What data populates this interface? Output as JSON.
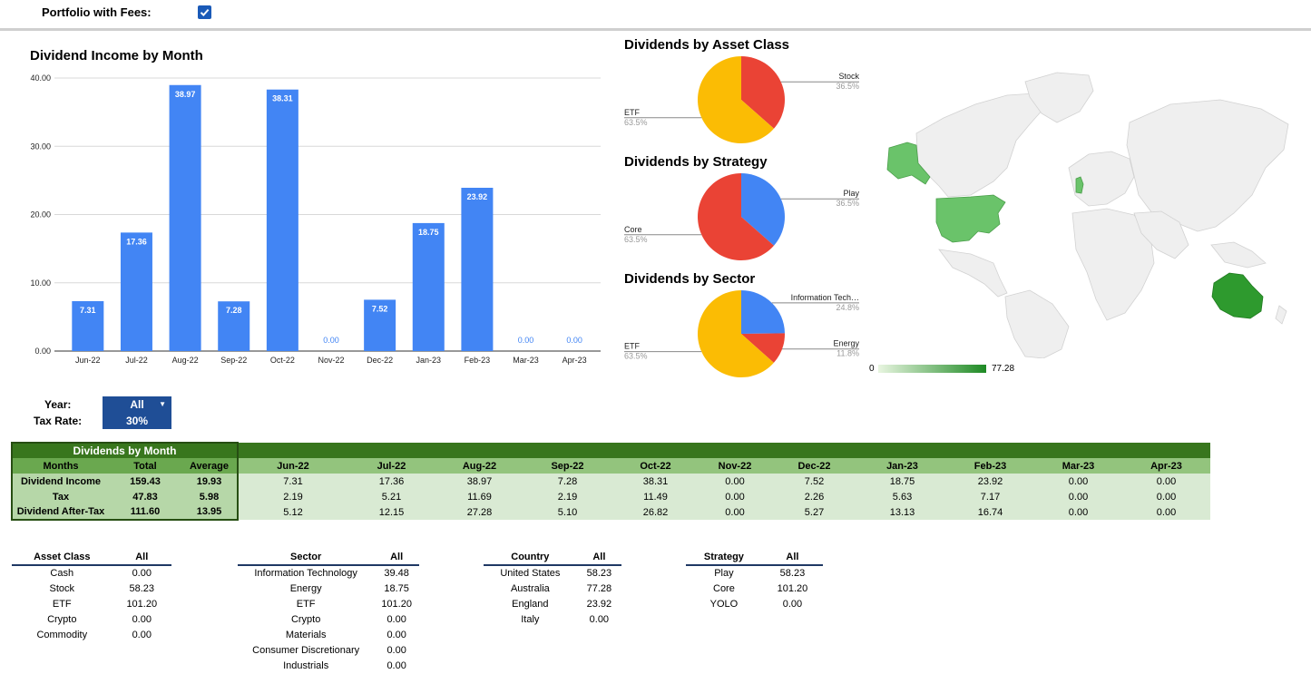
{
  "header": {
    "fees_label": "Portfolio with Fees:",
    "fees_checked": true
  },
  "controls": {
    "year_label": "Year:",
    "year_value": "All",
    "tax_label": "Tax Rate:",
    "tax_value": "30%"
  },
  "colors": {
    "bar": "#4285f4",
    "pie_blue": "#4285f4",
    "pie_red": "#ea4335",
    "pie_yellow": "#fbbc04",
    "map_high": "#1e8a24",
    "map_low": "#e8f5e0"
  },
  "chart_data": [
    {
      "type": "bar",
      "title": "Dividend Income by Month",
      "categories": [
        "Jun-22",
        "Jul-22",
        "Aug-22",
        "Sep-22",
        "Oct-22",
        "Nov-22",
        "Dec-22",
        "Jan-23",
        "Feb-23",
        "Mar-23",
        "Apr-23"
      ],
      "values": [
        7.31,
        17.36,
        38.97,
        7.28,
        38.31,
        0.0,
        7.52,
        18.75,
        23.92,
        0.0,
        0.0
      ],
      "value_labels": [
        "7.31",
        "17.36",
        "38.97",
        "7.28",
        "38.31",
        "0.00",
        "7.52",
        "18.75",
        "23.92",
        "0.00",
        "0.00"
      ],
      "yticks": [
        "0.00",
        "10.00",
        "20.00",
        "30.00",
        "40.00"
      ],
      "ylim": [
        0,
        40
      ],
      "grid": true
    },
    {
      "type": "pie",
      "title": "Dividends by Asset Class",
      "slices": [
        {
          "label": "Stock",
          "pct": "36.5%",
          "value": 36.5,
          "color": "#ea4335"
        },
        {
          "label": "ETF",
          "pct": "63.5%",
          "value": 63.5,
          "color": "#fbbc04"
        }
      ]
    },
    {
      "type": "pie",
      "title": "Dividends by Strategy",
      "slices": [
        {
          "label": "Play",
          "pct": "36.5%",
          "value": 36.5,
          "color": "#4285f4"
        },
        {
          "label": "Core",
          "pct": "63.5%",
          "value": 63.5,
          "color": "#ea4335"
        }
      ]
    },
    {
      "type": "pie",
      "title": "Dividends by Sector",
      "slices": [
        {
          "label": "Information Tech…",
          "pct": "24.8%",
          "value": 24.8,
          "color": "#4285f4"
        },
        {
          "label": "Energy",
          "pct": "11.8%",
          "value": 11.8,
          "color": "#ea4335"
        },
        {
          "label": "ETF",
          "pct": "63.5%",
          "value": 63.5,
          "color": "#fbbc04"
        }
      ]
    },
    {
      "type": "geo",
      "highlighted": [
        "United States",
        "Australia",
        "England"
      ],
      "legend_min": "0",
      "legend_max": "77.28"
    }
  ],
  "month_table": {
    "title": "Dividends by Month",
    "headers": [
      "Months",
      "Total",
      "Average"
    ],
    "months": [
      "Jun-22",
      "Jul-22",
      "Aug-22",
      "Sep-22",
      "Oct-22",
      "Nov-22",
      "Dec-22",
      "Jan-23",
      "Feb-23",
      "Mar-23",
      "Apr-23"
    ],
    "rows": [
      {
        "label": "Dividend Income",
        "total": "159.43",
        "average": "19.93",
        "values": [
          "7.31",
          "17.36",
          "38.97",
          "7.28",
          "38.31",
          "0.00",
          "7.52",
          "18.75",
          "23.92",
          "0.00",
          "0.00"
        ]
      },
      {
        "label": "Tax",
        "total": "47.83",
        "average": "5.98",
        "values": [
          "2.19",
          "5.21",
          "11.69",
          "2.19",
          "11.49",
          "0.00",
          "2.26",
          "5.63",
          "7.17",
          "0.00",
          "0.00"
        ]
      },
      {
        "label": "Dividend After-Tax",
        "total": "111.60",
        "average": "13.95",
        "values": [
          "5.12",
          "12.15",
          "27.28",
          "5.10",
          "26.82",
          "0.00",
          "5.27",
          "13.13",
          "16.74",
          "0.00",
          "0.00"
        ]
      }
    ]
  },
  "breakdowns": [
    {
      "header": "Asset Class",
      "col": "All",
      "rows": [
        [
          "Cash",
          "0.00"
        ],
        [
          "Stock",
          "58.23"
        ],
        [
          "ETF",
          "101.20"
        ],
        [
          "Crypto",
          "0.00"
        ],
        [
          "Commodity",
          "0.00"
        ]
      ]
    },
    {
      "header": "Sector",
      "col": "All",
      "rows": [
        [
          "Information Technology",
          "39.48"
        ],
        [
          "Energy",
          "18.75"
        ],
        [
          "ETF",
          "101.20"
        ],
        [
          "Crypto",
          "0.00"
        ],
        [
          "Materials",
          "0.00"
        ],
        [
          "Consumer Discretionary",
          "0.00"
        ],
        [
          "Industrials",
          "0.00"
        ]
      ]
    },
    {
      "header": "Country",
      "col": "All",
      "rows": [
        [
          "United States",
          "58.23"
        ],
        [
          "Australia",
          "77.28"
        ],
        [
          "England",
          "23.92"
        ],
        [
          "Italy",
          "0.00"
        ]
      ]
    },
    {
      "header": "Strategy",
      "col": "All",
      "rows": [
        [
          "Play",
          "58.23"
        ],
        [
          "Core",
          "101.20"
        ],
        [
          "YOLO",
          "0.00"
        ]
      ]
    }
  ]
}
